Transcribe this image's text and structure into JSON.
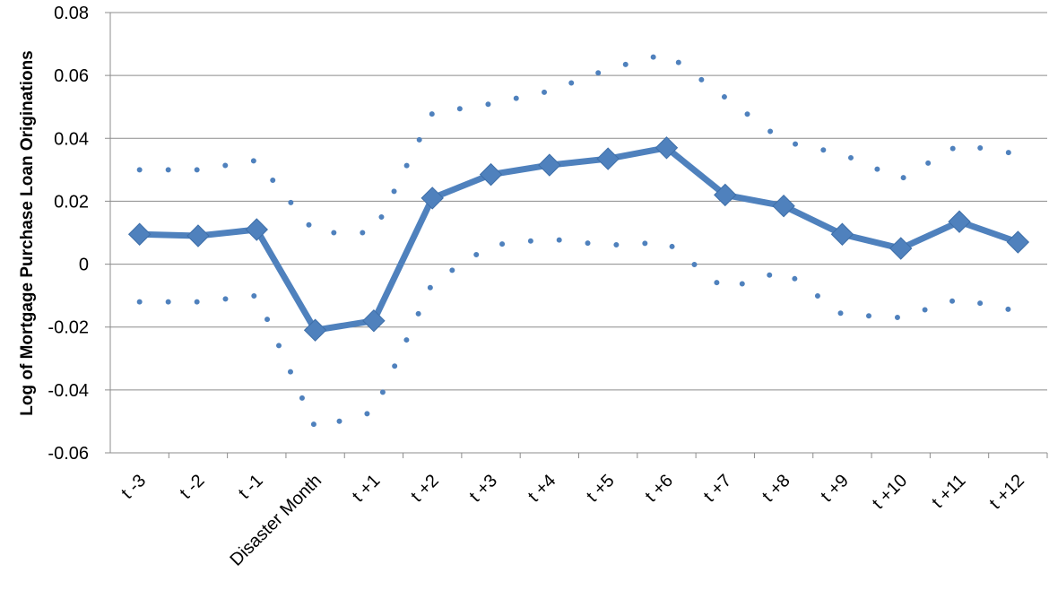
{
  "chart_data": {
    "type": "line",
    "y_label": "Log of Mortgage Purchase Loan Originations",
    "categories": [
      "t -3",
      "t -2",
      "t -1",
      "Disaster Month",
      "t +1",
      "t +2",
      "t +3",
      "t +4",
      "t +5",
      "t +6",
      "t +7",
      "t +8",
      "t +9",
      "t +10",
      "t +11",
      "t +12"
    ],
    "series": [
      {
        "color": "#4f81bd",
        "style": "solid",
        "values": [
          0.0095,
          0.009,
          0.011,
          -0.021,
          -0.018,
          0.021,
          0.0285,
          0.0315,
          0.0335,
          0.037,
          0.022,
          0.0185,
          0.0095,
          0.005,
          0.0135,
          0.007
        ]
      },
      {
        "color": "#4f81bd",
        "style": "dotted",
        "values": [
          0.03,
          0.03,
          0.033,
          0.01,
          0.01,
          0.048,
          0.051,
          0.055,
          0.062,
          0.067,
          0.053,
          0.039,
          0.035,
          0.027,
          0.038,
          0.035
        ]
      },
      {
        "color": "#4f81bd",
        "style": "dotted",
        "values": [
          -0.012,
          -0.012,
          -0.01,
          -0.052,
          -0.047,
          -0.006,
          0.006,
          0.008,
          0.006,
          0.007,
          -0.008,
          -0.002,
          -0.016,
          -0.017,
          -0.011,
          -0.015
        ]
      }
    ],
    "ylim": [
      -0.06,
      0.08
    ],
    "yticks": [
      -0.06,
      -0.04,
      -0.02,
      0,
      0.02,
      0.04,
      0.06,
      0.08
    ],
    "grid": true
  }
}
